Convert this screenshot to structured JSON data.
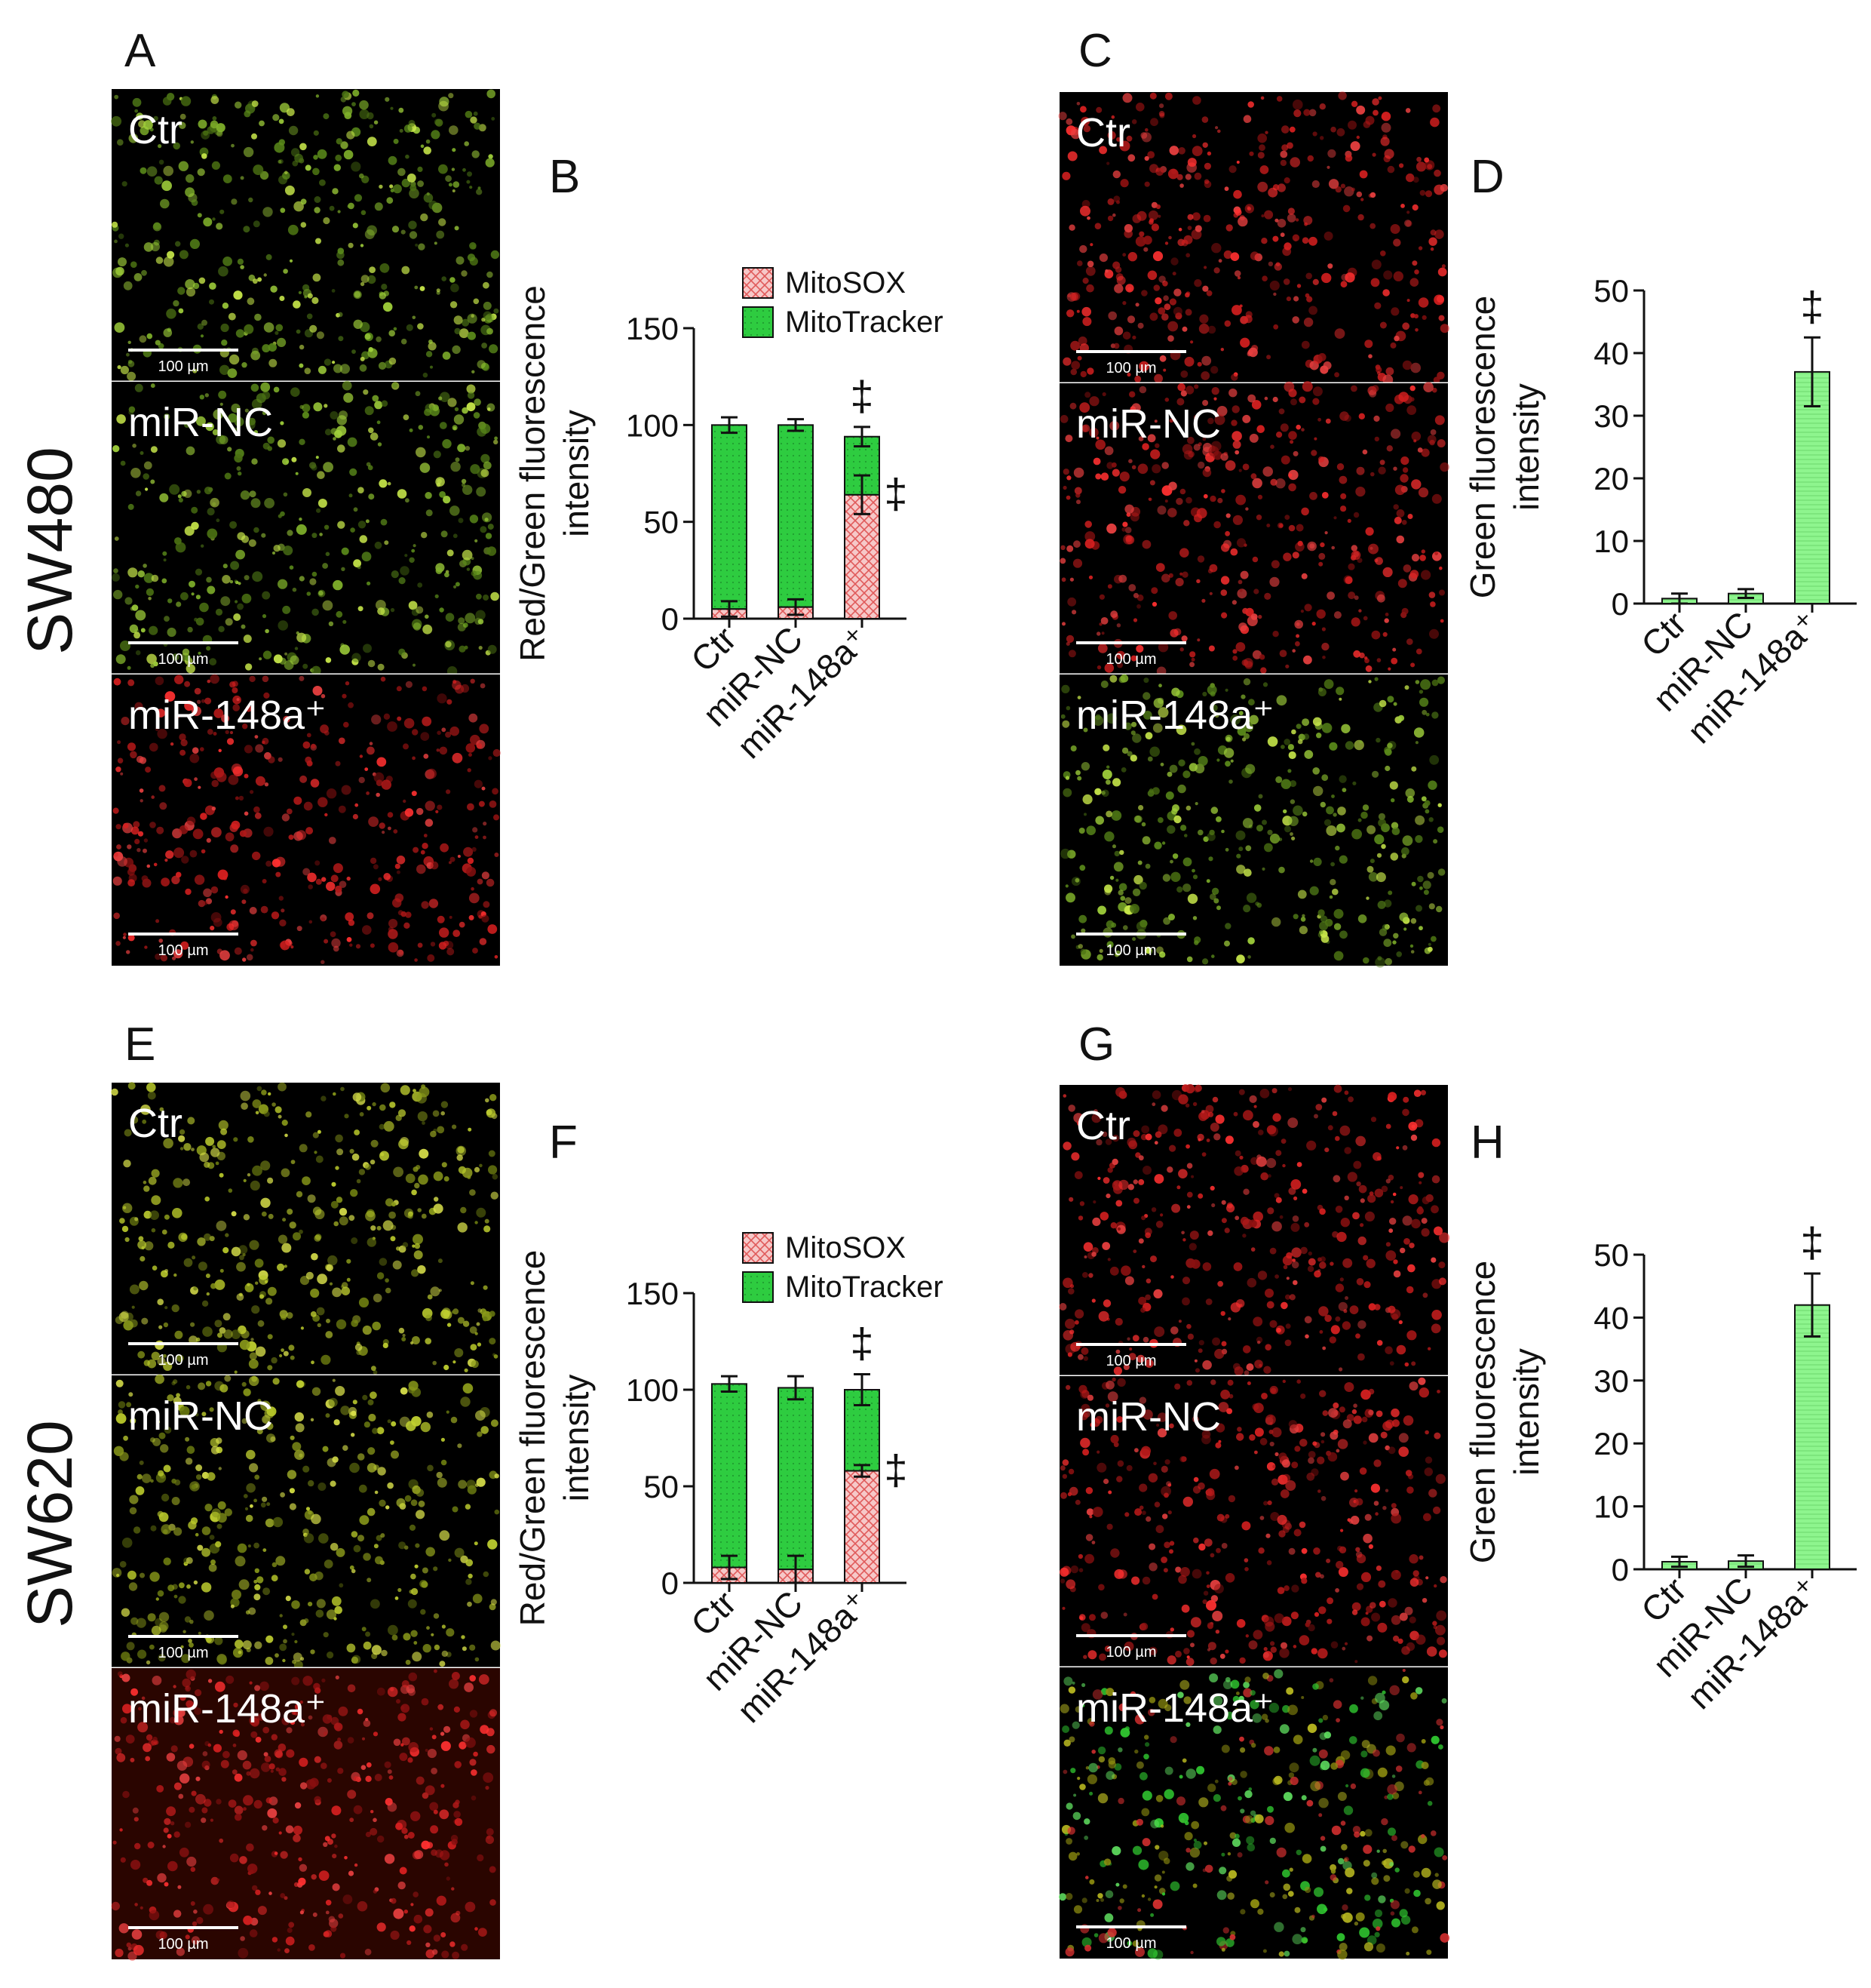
{
  "row_labels": {
    "top": "SW480",
    "bottom": "SW620"
  },
  "panel_letters": [
    "A",
    "B",
    "C",
    "D",
    "E",
    "F",
    "G",
    "H"
  ],
  "image_panels": [
    {
      "letter": "A",
      "cells": [
        {
          "label": "Ctr",
          "scale": "100 µm",
          "tone": "green"
        },
        {
          "label": "miR-NC",
          "scale": "100 µm",
          "tone": "green"
        },
        {
          "label": "miR-148a⁺",
          "scale": "100 µm",
          "tone": "red"
        }
      ]
    },
    {
      "letter": "C",
      "cells": [
        {
          "label": "Ctr",
          "scale": "100 µm",
          "tone": "red"
        },
        {
          "label": "miR-NC",
          "scale": "100 µm",
          "tone": "red"
        },
        {
          "label": "miR-148a⁺",
          "scale": "100 µm",
          "tone": "green"
        }
      ]
    },
    {
      "letter": "E",
      "cells": [
        {
          "label": "Ctr",
          "scale": "100 µm",
          "tone": "yellow"
        },
        {
          "label": "miR-NC",
          "scale": "100 µm",
          "tone": "yellow"
        },
        {
          "label": "miR-148a⁺",
          "scale": "100 µm",
          "tone": "red"
        }
      ]
    },
    {
      "letter": "G",
      "cells": [
        {
          "label": "Ctr",
          "scale": "100 µm",
          "tone": "red"
        },
        {
          "label": "miR-NC",
          "scale": "100 µm",
          "tone": "red"
        },
        {
          "label": "miR-148a⁺",
          "scale": "100 µm",
          "tone": "mixed"
        }
      ]
    }
  ],
  "colors": {
    "mitosox_fill": "#f6c8c8",
    "mitosox_hatch": "#e05a5a",
    "mitotracker_fill": "#2ecc40",
    "green_bar": "#8ef58e",
    "axis": "#111111"
  },
  "chart_data": [
    {
      "panel": "B",
      "type": "bar",
      "stacked": true,
      "categories": [
        "Ctr",
        "miR-NC",
        "miR-148a⁺"
      ],
      "series": [
        {
          "name": "MitoSOX",
          "values": [
            5,
            6,
            64
          ],
          "errors": [
            4,
            4,
            10
          ]
        },
        {
          "name": "MitoTracker",
          "values": [
            95,
            94,
            30
          ],
          "errors": [
            4,
            3,
            5
          ]
        }
      ],
      "ylabel": "Red/Green fluorescence intensity",
      "ylim": [
        0,
        150
      ],
      "yticks": [
        0,
        50,
        100,
        150
      ],
      "legend": "top",
      "significance": [
        "‡",
        "‡"
      ],
      "grid": false
    },
    {
      "panel": "D",
      "type": "bar",
      "categories": [
        "Ctr",
        "miR-NC",
        "miR-148a⁺"
      ],
      "values": [
        0.8,
        1.6,
        37
      ],
      "errors": [
        0.8,
        0.7,
        5.5
      ],
      "ylabel": "Green fluorescence intensity",
      "ylim": [
        0,
        50
      ],
      "yticks": [
        0,
        10,
        20,
        30,
        40,
        50
      ],
      "significance": [
        "‡"
      ],
      "grid": false
    },
    {
      "panel": "F",
      "type": "bar",
      "stacked": true,
      "categories": [
        "Ctr",
        "miR-NC",
        "miR-148a⁺"
      ],
      "series": [
        {
          "name": "MitoSOX",
          "values": [
            8,
            7,
            58
          ],
          "errors": [
            6,
            7,
            3
          ]
        },
        {
          "name": "MitoTracker",
          "values": [
            95,
            94,
            42
          ],
          "errors": [
            4,
            6,
            8
          ]
        }
      ],
      "ylabel": "Red/Green fluorescence intensity",
      "ylim": [
        0,
        150
      ],
      "yticks": [
        0,
        50,
        100,
        150
      ],
      "legend": "top",
      "significance": [
        "‡",
        "‡"
      ],
      "grid": false
    },
    {
      "panel": "H",
      "type": "bar",
      "categories": [
        "Ctr",
        "miR-NC",
        "miR-148a⁺"
      ],
      "values": [
        1.2,
        1.3,
        42
      ],
      "errors": [
        0.8,
        0.9,
        5
      ],
      "ylabel": "Green fluorescence intensity",
      "ylim": [
        0,
        50
      ],
      "yticks": [
        0,
        10,
        20,
        30,
        40,
        50
      ],
      "significance": [
        "‡"
      ],
      "grid": false
    }
  ]
}
